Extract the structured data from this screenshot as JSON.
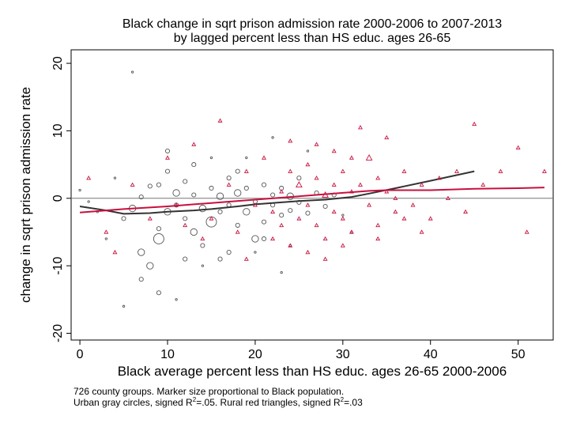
{
  "chart_data": {
    "type": "scatter",
    "title": "Black change in sqrt prison admission rate 2000-2006 to 2007-2013",
    "subtitle": "by lagged percent less than HS educ. ages 26-65",
    "xlabel": "Black average percent less than HS educ. ages 26-65 2000-2006",
    "ylabel": "change in sqrt prison admission rate",
    "xlim": [
      -1,
      54
    ],
    "ylim": [
      -21,
      22
    ],
    "xticks": [
      0,
      10,
      20,
      30,
      40,
      50
    ],
    "yticks": [
      -20,
      -10,
      0,
      10,
      20
    ],
    "reference_line_y": 0,
    "grid": false,
    "series": [
      {
        "marker": "hollow-circle",
        "color": "#555555",
        "trend": [
          [
            0,
            -1.2
          ],
          [
            3,
            -1.8
          ],
          [
            5,
            -2.3
          ],
          [
            8,
            -2.2
          ],
          [
            10,
            -2.0
          ],
          [
            13,
            -1.8
          ],
          [
            15,
            -1.6
          ],
          [
            18,
            -1.2
          ],
          [
            20,
            -0.9
          ],
          [
            23,
            -0.6
          ],
          [
            25,
            -0.4
          ],
          [
            28,
            -0.2
          ],
          [
            31,
            0.2
          ],
          [
            33,
            0.7
          ],
          [
            36,
            1.5
          ],
          [
            40,
            2.6
          ],
          [
            45,
            4.0
          ]
        ],
        "points": [
          [
            0,
            1.2,
            1
          ],
          [
            1,
            -0.5,
            1
          ],
          [
            5,
            -3,
            2
          ],
          [
            6,
            -1.5,
            3
          ],
          [
            7,
            0.2,
            2
          ],
          [
            8,
            1.8,
            2
          ],
          [
            9,
            -6,
            4
          ],
          [
            9,
            -4.5,
            2
          ],
          [
            10,
            -2,
            3
          ],
          [
            10,
            4,
            2
          ],
          [
            11,
            0.8,
            3
          ],
          [
            11,
            -1,
            2
          ],
          [
            12,
            -3,
            2
          ],
          [
            12,
            2.5,
            2
          ],
          [
            13,
            -5,
            3
          ],
          [
            13,
            0.5,
            2
          ],
          [
            14,
            -1.5,
            3
          ],
          [
            14,
            -7,
            2
          ],
          [
            15,
            -3.5,
            4
          ],
          [
            15,
            1.5,
            2
          ],
          [
            16,
            -2,
            2
          ],
          [
            16,
            0.3,
            3
          ],
          [
            17,
            3,
            2
          ],
          [
            17,
            -1,
            2
          ],
          [
            18,
            -4,
            2
          ],
          [
            18,
            0.8,
            3
          ],
          [
            19,
            -2,
            3
          ],
          [
            19,
            1.5,
            2
          ],
          [
            20,
            -0.5,
            2
          ],
          [
            20,
            -6,
            3
          ],
          [
            21,
            2,
            2
          ],
          [
            21,
            -3.5,
            2
          ],
          [
            22,
            -1,
            2
          ],
          [
            22,
            0.5,
            2
          ],
          [
            23,
            -2.5,
            2
          ],
          [
            23,
            1.5,
            2
          ],
          [
            24,
            0.3,
            3
          ],
          [
            24,
            -1.8,
            2
          ],
          [
            25,
            3,
            2
          ],
          [
            25,
            -0.6,
            2
          ],
          [
            26,
            -2.2,
            2
          ],
          [
            27,
            0.8,
            2
          ],
          [
            28,
            -1.2,
            2
          ],
          [
            29,
            0.5,
            2
          ],
          [
            30,
            -2.5,
            1
          ],
          [
            31,
            -5,
            1
          ],
          [
            6,
            18.7,
            1
          ],
          [
            7,
            -12,
            2
          ],
          [
            8,
            -10,
            3
          ],
          [
            9,
            -14,
            2
          ],
          [
            5,
            -16,
            1
          ],
          [
            11,
            -15,
            1
          ],
          [
            3,
            -6,
            1
          ],
          [
            4,
            3,
            1
          ],
          [
            16,
            -9,
            2
          ],
          [
            23,
            -11,
            1
          ],
          [
            20,
            -8,
            1
          ],
          [
            10,
            7,
            2
          ],
          [
            13,
            5,
            2
          ],
          [
            19,
            6,
            1
          ],
          [
            22,
            9,
            1
          ],
          [
            26,
            7,
            1
          ],
          [
            2,
            -2,
            1
          ],
          [
            7,
            -8,
            3
          ],
          [
            12,
            -9,
            2
          ],
          [
            17,
            -8,
            2
          ],
          [
            14,
            -10,
            1
          ],
          [
            24,
            -7,
            1
          ],
          [
            9,
            2,
            2
          ],
          [
            18,
            4,
            2
          ],
          [
            21,
            -6,
            2
          ],
          [
            15,
            6,
            1
          ]
        ]
      },
      {
        "marker": "hollow-triangle",
        "color": "#c8103e",
        "trend": [
          [
            0,
            -2.1
          ],
          [
            5,
            -1.6
          ],
          [
            10,
            -1.2
          ],
          [
            15,
            -0.7
          ],
          [
            20,
            -0.2
          ],
          [
            25,
            0.3
          ],
          [
            30,
            0.8
          ],
          [
            33,
            1.1
          ],
          [
            35,
            1.2
          ],
          [
            40,
            1.2
          ],
          [
            45,
            1.4
          ],
          [
            50,
            1.5
          ],
          [
            53,
            1.6
          ]
        ],
        "points": [
          [
            1,
            3,
            1
          ],
          [
            3,
            -5,
            1
          ],
          [
            6,
            2,
            1
          ],
          [
            10,
            6,
            1
          ],
          [
            12,
            -4,
            1
          ],
          [
            13,
            8,
            1
          ],
          [
            15,
            -3,
            1
          ],
          [
            16,
            11.5,
            1
          ],
          [
            17,
            2,
            1
          ],
          [
            18,
            -5,
            1
          ],
          [
            19,
            4,
            1
          ],
          [
            20,
            -1,
            1
          ],
          [
            21,
            6,
            1
          ],
          [
            22,
            -2,
            1
          ],
          [
            23,
            1,
            1
          ],
          [
            24,
            -7,
            1
          ],
          [
            24,
            4,
            1
          ],
          [
            25,
            -3,
            1
          ],
          [
            25,
            2,
            2
          ],
          [
            26,
            5,
            1
          ],
          [
            26,
            -1,
            1
          ],
          [
            27,
            -4,
            1
          ],
          [
            27,
            3,
            1
          ],
          [
            28,
            0.5,
            2
          ],
          [
            28,
            -6,
            1
          ],
          [
            29,
            2,
            1
          ],
          [
            29,
            -2,
            1
          ],
          [
            30,
            4,
            1
          ],
          [
            30,
            -3,
            1
          ],
          [
            31,
            1,
            1
          ],
          [
            31,
            -5,
            1
          ],
          [
            32,
            10.5,
            1
          ],
          [
            32,
            2,
            1
          ],
          [
            33,
            6,
            2
          ],
          [
            33,
            -1,
            1
          ],
          [
            34,
            3,
            1
          ],
          [
            34,
            -4,
            1
          ],
          [
            35,
            9,
            1
          ],
          [
            35,
            1,
            1
          ],
          [
            36,
            -2,
            1
          ],
          [
            37,
            4,
            1
          ],
          [
            38,
            -1,
            1
          ],
          [
            39,
            2,
            1
          ],
          [
            40,
            -3,
            1
          ],
          [
            41,
            3,
            1
          ],
          [
            42,
            0,
            1
          ],
          [
            43,
            4,
            1
          ],
          [
            45,
            11,
            1
          ],
          [
            48,
            4,
            1
          ],
          [
            50,
            7.5,
            1
          ],
          [
            51,
            -5,
            1
          ],
          [
            53,
            4,
            1
          ],
          [
            4,
            -8,
            1
          ],
          [
            8,
            -3,
            1
          ],
          [
            11,
            -1,
            1
          ],
          [
            14,
            -6,
            1
          ],
          [
            19,
            -9,
            1
          ],
          [
            22,
            -6,
            1
          ],
          [
            23,
            -4,
            1
          ],
          [
            26,
            -8,
            1
          ],
          [
            28,
            -9,
            1
          ],
          [
            30,
            -7,
            1
          ],
          [
            34,
            -6,
            1
          ],
          [
            36,
            0,
            1
          ],
          [
            37,
            -3,
            1
          ],
          [
            39,
            -5,
            1
          ],
          [
            44,
            -2,
            1
          ],
          [
            46,
            2,
            1
          ],
          [
            31,
            6,
            1
          ],
          [
            29,
            7,
            1
          ],
          [
            27,
            8,
            1
          ],
          [
            24,
            8.5,
            1
          ]
        ]
      }
    ]
  },
  "notes": {
    "line1": "726 county groups. Marker size proportional to Black population.",
    "line2_a": "Urban gray circles, signed R",
    "line2_sup1": "2",
    "line2_b": "=.05. Rural red triangles, signed R",
    "line2_sup2": "2",
    "line2_c": "=.03"
  }
}
